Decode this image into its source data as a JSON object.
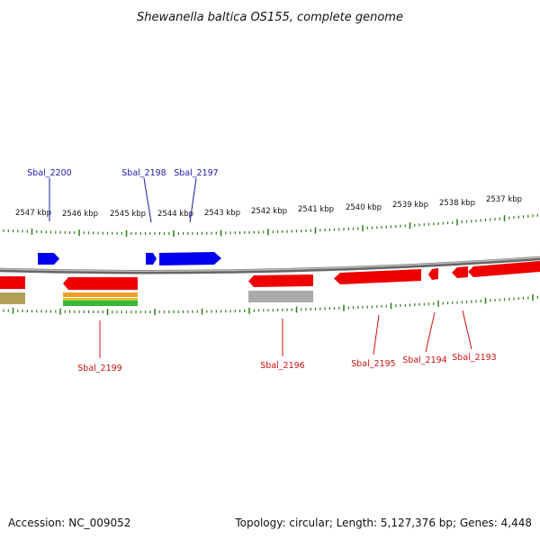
{
  "title": "Shewanella baltica OS155, complete genome",
  "footer": {
    "accession": "Accession: NC_009052",
    "summary": "Topology: circular; Length: 5,127,376 bp; Genes: 4,448"
  },
  "ruler": {
    "labels": [
      "2547 kbp",
      "2546 kbp",
      "2545 kbp",
      "2544 kbp",
      "2543 kbp",
      "2542 kbp",
      "2541 kbp",
      "2540 kbp",
      "2539 kbp",
      "2538 kbp",
      "2537 kbp"
    ]
  },
  "gene_labels": {
    "forward": [
      "Sbal_2200",
      "Sbal_2198",
      "Sbal_2197"
    ],
    "reverse": [
      "Sbal_2199",
      "Sbal_2196",
      "Sbal_2195",
      "Sbal_2194",
      "Sbal_2193"
    ]
  },
  "colors": {
    "forward_gene": "#0000ee",
    "reverse_gene": "#ee0000",
    "backbone": "#888888",
    "ticks": "#2e7d1a",
    "forward_label": "#1a1aaa",
    "reverse_label": "#cc1111",
    "cog_orange": "#f0a020",
    "cog_green": "#33bb33",
    "cog_gray": "#aaaaaa",
    "cog_olive": "#b5a05a"
  }
}
